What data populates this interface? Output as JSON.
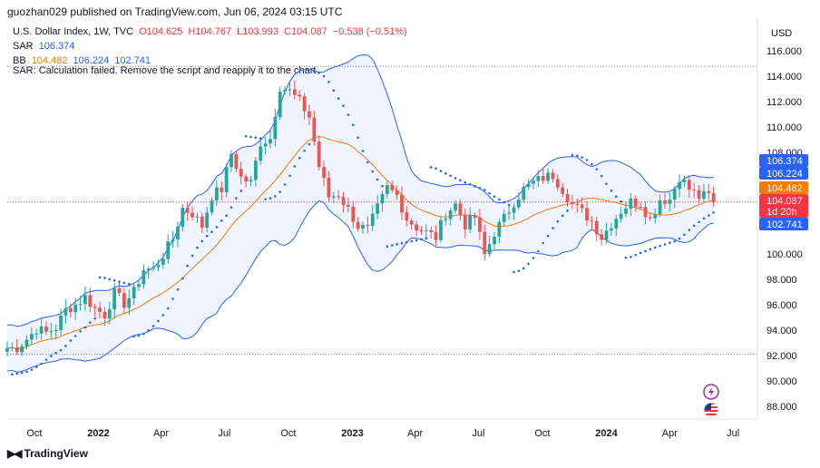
{
  "header": {
    "text": "guozhan029 published on TradingView.com, Jun 06, 2024 03:15 UTC"
  },
  "legend": {
    "symbol": "U.S. Dollar Index, 1W, TVC",
    "open": "O104.625",
    "high": "H104.767",
    "low": "L103.993",
    "close": "C104.087",
    "change": "−0.538 (−0.51%)",
    "sar_label": "SAR",
    "sar_value": "106.374",
    "bb_label": "BB",
    "bb_basis": "104.482",
    "bb_upper": "106.224",
    "bb_lower": "102.741",
    "sar_error": "SAR: Calculation failed. Remove the script and reapply it to the chart"
  },
  "axis": {
    "currency": "USD",
    "y_ticks": [
      "116.000",
      "114.000",
      "112.000",
      "110.000",
      "108.000",
      "100.000",
      "98.000",
      "96.000",
      "94.000",
      "92.000",
      "90.000",
      "88.000"
    ],
    "x_ticks": [
      {
        "label": "Oct",
        "bold": false
      },
      {
        "label": "2022",
        "bold": true
      },
      {
        "label": "Apr",
        "bold": false
      },
      {
        "label": "Jul",
        "bold": false
      },
      {
        "label": "Oct",
        "bold": false
      },
      {
        "label": "2023",
        "bold": true
      },
      {
        "label": "Apr",
        "bold": false
      },
      {
        "label": "Jul",
        "bold": false
      },
      {
        "label": "Oct",
        "bold": false
      },
      {
        "label": "2024",
        "bold": true
      },
      {
        "label": "Apr",
        "bold": false
      },
      {
        "label": "Jul",
        "bold": false
      }
    ]
  },
  "price_tags": {
    "sar": "106.374",
    "bb_upper": "106.224",
    "bb_basis": "104.482",
    "close": "104.087",
    "countdown": "1d 20h",
    "bb_lower": "102.741"
  },
  "footer": {
    "brand": "TradingView"
  },
  "icons": [
    "lightning-icon",
    "us-flag-icon",
    "tradingview-logo-icon"
  ],
  "colors": {
    "up": "#26a69a",
    "down": "#ef5350",
    "bb_band": "#2962ff",
    "bb_basis": "#f57c00",
    "sar": "#2962ff",
    "close_tag": "#f23645"
  },
  "chart_data": {
    "type": "candlestick",
    "interval": "1W",
    "ylim": [
      87,
      117
    ],
    "x_range": [
      "2021-08-23",
      "2024-08-05"
    ],
    "reference_lines": [
      114.78,
      92.1
    ],
    "weekly_close": [
      [
        "2021-08-23",
        92.6
      ],
      [
        "2021-09-06",
        92.6
      ],
      [
        "2021-09-20",
        93.3
      ],
      [
        "2021-10-04",
        94.1
      ],
      [
        "2021-10-18",
        93.8
      ],
      [
        "2021-11-01",
        94.2
      ],
      [
        "2021-11-15",
        95.6
      ],
      [
        "2021-11-29",
        96.0
      ],
      [
        "2021-12-13",
        96.6
      ],
      [
        "2021-12-27",
        95.7
      ],
      [
        "2022-01-10",
        95.2
      ],
      [
        "2022-01-24",
        96.9
      ],
      [
        "2022-02-07",
        96.1
      ],
      [
        "2022-02-21",
        97.0
      ],
      [
        "2022-03-07",
        98.8
      ],
      [
        "2022-03-21",
        98.8
      ],
      [
        "2022-04-04",
        99.9
      ],
      [
        "2022-04-18",
        101.2
      ],
      [
        "2022-05-02",
        103.6
      ],
      [
        "2022-05-16",
        103.2
      ],
      [
        "2022-05-30",
        102.2
      ],
      [
        "2022-06-13",
        104.6
      ],
      [
        "2022-06-27",
        105.1
      ],
      [
        "2022-07-11",
        107.9
      ],
      [
        "2022-07-25",
        106.0
      ],
      [
        "2022-08-08",
        105.6
      ],
      [
        "2022-08-22",
        108.8
      ],
      [
        "2022-09-05",
        109.1
      ],
      [
        "2022-09-19",
        113.2
      ],
      [
        "2022-10-03",
        112.8
      ],
      [
        "2022-10-17",
        112.0
      ],
      [
        "2022-10-31",
        110.8
      ],
      [
        "2022-11-14",
        106.9
      ],
      [
        "2022-11-28",
        104.5
      ],
      [
        "2022-12-12",
        104.7
      ],
      [
        "2022-12-26",
        103.5
      ],
      [
        "2023-01-09",
        102.2
      ],
      [
        "2023-01-23",
        101.9
      ],
      [
        "2023-02-06",
        103.6
      ],
      [
        "2023-02-20",
        105.2
      ],
      [
        "2023-03-06",
        104.6
      ],
      [
        "2023-03-20",
        102.8
      ],
      [
        "2023-04-03",
        102.1
      ],
      [
        "2023-04-17",
        101.7
      ],
      [
        "2023-05-01",
        101.3
      ],
      [
        "2023-05-15",
        103.2
      ],
      [
        "2023-05-29",
        103.9
      ],
      [
        "2023-06-12",
        102.3
      ],
      [
        "2023-06-26",
        102.9
      ],
      [
        "2023-07-10",
        99.9
      ],
      [
        "2023-07-24",
        101.7
      ],
      [
        "2023-08-07",
        102.8
      ],
      [
        "2023-08-21",
        104.1
      ],
      [
        "2023-09-04",
        105.1
      ],
      [
        "2023-09-18",
        105.6
      ],
      [
        "2023-10-02",
        106.0
      ],
      [
        "2023-10-16",
        106.2
      ],
      [
        "2023-10-30",
        105.1
      ],
      [
        "2023-11-13",
        103.9
      ],
      [
        "2023-11-27",
        103.3
      ],
      [
        "2023-12-11",
        102.6
      ],
      [
        "2023-12-25",
        101.3
      ],
      [
        "2024-01-08",
        102.4
      ],
      [
        "2024-01-22",
        103.4
      ],
      [
        "2024-02-05",
        104.1
      ],
      [
        "2024-02-19",
        104.0
      ],
      [
        "2024-03-04",
        102.7
      ],
      [
        "2024-03-18",
        104.3
      ],
      [
        "2024-04-01",
        104.3
      ],
      [
        "2024-04-15",
        106.1
      ],
      [
        "2024-04-29",
        105.1
      ],
      [
        "2024-05-13",
        104.5
      ],
      [
        "2024-05-27",
        104.6
      ],
      [
        "2024-06-03",
        104.087
      ]
    ]
  }
}
